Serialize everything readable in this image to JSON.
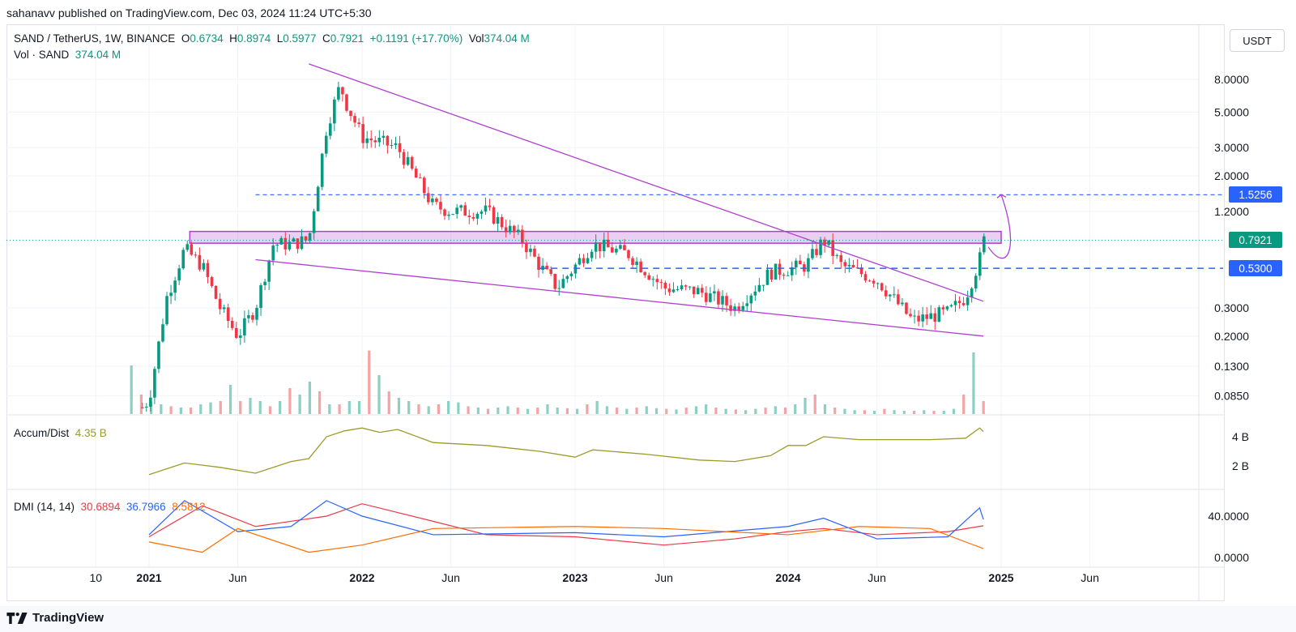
{
  "header": {
    "publisher": "sahanavv published on TradingView.com, Dec 03, 2024 11:24 UTC+5:30"
  },
  "legend": {
    "symbol": "SAND / TetherUS, 1W, BINANCE",
    "o_label": "O",
    "o": "0.6734",
    "h_label": "H",
    "h": "0.8974",
    "l_label": "L",
    "l": "0.5977",
    "c_label": "C",
    "c": "0.7921",
    "change": "+0.1191 (+17.70%)",
    "vol_label": "Vol",
    "vol": "374.04 M",
    "vol_series_label": "Vol · SAND",
    "vol_series_value": "374.04 M"
  },
  "unit_button": "USDT",
  "price_tags": {
    "level_high": "1.5256",
    "last": "0.7921",
    "level_low": "0.5300"
  },
  "accum_dist": {
    "label": "Accum/Dist",
    "value": "4.35 B"
  },
  "dmi": {
    "label": "DMI (14, 14)",
    "plus_di": "30.6894",
    "minus_di": "36.7966",
    "adx": "8.5812"
  },
  "brand": "TradingView",
  "colors": {
    "up": "#089981",
    "down": "#f23645",
    "up_volume": "#8ccfc3",
    "down_volume": "#f5a3a6",
    "wedge": "#b03fcf",
    "level": "#2962ff",
    "adl": "#9b9b2a",
    "dmi_plus": "#f23645",
    "dmi_minus": "#2962ff",
    "dmi_adx": "#ff6d00"
  },
  "chart_data": [
    {
      "type": "candlestick",
      "title": "SAND / TetherUS, 1W, BINANCE",
      "scale": "log",
      "y_ticks": [
        "8.0000",
        "5.0000",
        "3.0000",
        "2.0000",
        "1.2000",
        "0.3000",
        "0.2000",
        "0.1300",
        "0.0850"
      ],
      "x_ticks": [
        "10",
        "2021",
        "Jun",
        "2022",
        "Jun",
        "2023",
        "Jun",
        "2024",
        "Jun",
        "2025",
        "Jun"
      ],
      "last_close": 0.7921,
      "horizontal_levels": [
        1.5256,
        0.53
      ],
      "resistance_zone": [
        0.76,
        0.9
      ],
      "wedge": {
        "upper": [
          {
            "x": "2021-10",
            "y": 10.0
          },
          {
            "x": "2024-12",
            "y": 0.33
          }
        ],
        "lower": [
          {
            "x": "2021-07",
            "y": 0.6
          },
          {
            "x": "2024-12",
            "y": 0.2
          }
        ]
      },
      "weekly_close_path": [
        {
          "x": "2020-12",
          "y": 0.06
        },
        {
          "x": "2021-01",
          "y": 0.08
        },
        {
          "x": "2021-02",
          "y": 0.35
        },
        {
          "x": "2021-03",
          "y": 0.7
        },
        {
          "x": "2021-04",
          "y": 0.55
        },
        {
          "x": "2021-05",
          "y": 0.3
        },
        {
          "x": "2021-06",
          "y": 0.2
        },
        {
          "x": "2021-07",
          "y": 0.3
        },
        {
          "x": "2021-08",
          "y": 0.75
        },
        {
          "x": "2021-09",
          "y": 0.75
        },
        {
          "x": "2021-10",
          "y": 0.8
        },
        {
          "x": "2021-11",
          "y": 4.0
        },
        {
          "x": "2021-11-25",
          "y": 7.5
        },
        {
          "x": "2021-12",
          "y": 6.0
        },
        {
          "x": "2022-01",
          "y": 3.5
        },
        {
          "x": "2022-03",
          "y": 3.0
        },
        {
          "x": "2022-05",
          "y": 1.3
        },
        {
          "x": "2022-06",
          "y": 1.2
        },
        {
          "x": "2022-08",
          "y": 1.2
        },
        {
          "x": "2022-10",
          "y": 0.8
        },
        {
          "x": "2022-11",
          "y": 0.55
        },
        {
          "x": "2022-12",
          "y": 0.4
        },
        {
          "x": "2023-02",
          "y": 0.75
        },
        {
          "x": "2023-04",
          "y": 0.65
        },
        {
          "x": "2023-06",
          "y": 0.4
        },
        {
          "x": "2023-08",
          "y": 0.38
        },
        {
          "x": "2023-10",
          "y": 0.3
        },
        {
          "x": "2023-12",
          "y": 0.5
        },
        {
          "x": "2024-02",
          "y": 0.55
        },
        {
          "x": "2024-03",
          "y": 0.8
        },
        {
          "x": "2024-04",
          "y": 0.55
        },
        {
          "x": "2024-06",
          "y": 0.45
        },
        {
          "x": "2024-08",
          "y": 0.25
        },
        {
          "x": "2024-10",
          "y": 0.28
        },
        {
          "x": "2024-11",
          "y": 0.35
        },
        {
          "x": "2024-11-25",
          "y": 0.6
        },
        {
          "x": "2024-12",
          "y": 0.7921
        }
      ],
      "projection": [
        {
          "x": "2024-12",
          "y": 0.7921
        },
        {
          "x": "2025-01",
          "y": 1.5256
        }
      ],
      "volume": {
        "label": "Vol · SAND",
        "last": "374.04 M",
        "relative_heights": [
          0.75,
          0.3,
          0.18,
          0.15,
          0.12,
          0.1,
          0.1,
          0.15,
          0.18,
          0.2,
          0.45,
          0.2,
          0.25,
          0.2,
          0.12,
          0.2,
          0.4,
          0.3,
          0.5,
          0.35,
          0.15,
          0.15,
          0.2,
          0.2,
          0.98,
          0.6,
          0.35,
          0.25,
          0.2,
          0.15,
          0.12,
          0.15,
          0.2,
          0.18,
          0.12,
          0.1,
          0.08,
          0.1,
          0.12,
          0.1,
          0.08,
          0.1,
          0.15,
          0.1,
          0.09,
          0.08,
          0.15,
          0.2,
          0.12,
          0.1,
          0.08,
          0.1,
          0.12,
          0.09,
          0.08,
          0.07,
          0.1,
          0.12,
          0.15,
          0.1,
          0.08,
          0.07,
          0.06,
          0.08,
          0.1,
          0.12,
          0.1,
          0.15,
          0.25,
          0.3,
          0.15,
          0.1,
          0.08,
          0.06,
          0.06,
          0.05,
          0.08,
          0.06,
          0.05,
          0.05,
          0.06,
          0.05,
          0.05,
          0.08,
          0.3,
          0.95,
          0.2
        ]
      }
    },
    {
      "type": "line",
      "title": "Accum/Dist",
      "y_ticks": [
        "4 B",
        "2 B"
      ],
      "last": "4.35 B",
      "series": [
        {
          "values": [
            {
              "x": "2021-01",
              "y": 1.4
            },
            {
              "x": "2021-03",
              "y": 2.2
            },
            {
              "x": "2021-05",
              "y": 1.9
            },
            {
              "x": "2021-07",
              "y": 1.5
            },
            {
              "x": "2021-09",
              "y": 2.3
            },
            {
              "x": "2021-10",
              "y": 2.5
            },
            {
              "x": "2021-11",
              "y": 4.0
            },
            {
              "x": "2021-12",
              "y": 4.4
            },
            {
              "x": "2022-01",
              "y": 4.6
            },
            {
              "x": "2022-02",
              "y": 4.3
            },
            {
              "x": "2022-03",
              "y": 4.5
            },
            {
              "x": "2022-05",
              "y": 3.6
            },
            {
              "x": "2022-08",
              "y": 3.4
            },
            {
              "x": "2022-11",
              "y": 3.0
            },
            {
              "x": "2023-01",
              "y": 2.6
            },
            {
              "x": "2023-02",
              "y": 3.1
            },
            {
              "x": "2023-05",
              "y": 2.8
            },
            {
              "x": "2023-08",
              "y": 2.4
            },
            {
              "x": "2023-10",
              "y": 2.3
            },
            {
              "x": "2023-12",
              "y": 2.7
            },
            {
              "x": "2024-01",
              "y": 3.4
            },
            {
              "x": "2024-02",
              "y": 3.4
            },
            {
              "x": "2024-03",
              "y": 4.0
            },
            {
              "x": "2024-05",
              "y": 3.8
            },
            {
              "x": "2024-07",
              "y": 3.8
            },
            {
              "x": "2024-09",
              "y": 3.8
            },
            {
              "x": "2024-11",
              "y": 3.9
            },
            {
              "x": "2024-11-25",
              "y": 4.6
            },
            {
              "x": "2024-12",
              "y": 4.35
            }
          ]
        }
      ]
    },
    {
      "type": "line",
      "title": "DMI (14, 14)",
      "y_ticks": [
        "40.0000",
        "0.0000"
      ],
      "series": [
        {
          "name": "30.6894",
          "color": "#f23645",
          "values": [
            {
              "x": "2021-01",
              "y": 20
            },
            {
              "x": "2021-04",
              "y": 50
            },
            {
              "x": "2021-07",
              "y": 30
            },
            {
              "x": "2021-11",
              "y": 40
            },
            {
              "x": "2022-01",
              "y": 52
            },
            {
              "x": "2022-05",
              "y": 35
            },
            {
              "x": "2022-08",
              "y": 22
            },
            {
              "x": "2023-01",
              "y": 20
            },
            {
              "x": "2023-06",
              "y": 12
            },
            {
              "x": "2023-10",
              "y": 18
            },
            {
              "x": "2024-01",
              "y": 25
            },
            {
              "x": "2024-03",
              "y": 28
            },
            {
              "x": "2024-06",
              "y": 22
            },
            {
              "x": "2024-10",
              "y": 25
            },
            {
              "x": "2024-12",
              "y": 30.6894
            }
          ]
        },
        {
          "name": "36.7966",
          "color": "#2962ff",
          "values": [
            {
              "x": "2021-01",
              "y": 22
            },
            {
              "x": "2021-03",
              "y": 55
            },
            {
              "x": "2021-06",
              "y": 25
            },
            {
              "x": "2021-09",
              "y": 30
            },
            {
              "x": "2021-11",
              "y": 55
            },
            {
              "x": "2022-01",
              "y": 40
            },
            {
              "x": "2022-05",
              "y": 22
            },
            {
              "x": "2023-01",
              "y": 24
            },
            {
              "x": "2023-06",
              "y": 20
            },
            {
              "x": "2024-01",
              "y": 30
            },
            {
              "x": "2024-03",
              "y": 38
            },
            {
              "x": "2024-06",
              "y": 18
            },
            {
              "x": "2024-10",
              "y": 20
            },
            {
              "x": "2024-11-25",
              "y": 48
            },
            {
              "x": "2024-12",
              "y": 36.7966
            }
          ]
        },
        {
          "name": "8.5812",
          "color": "#ff6d00",
          "values": [
            {
              "x": "2021-01",
              "y": 15
            },
            {
              "x": "2021-04",
              "y": 5
            },
            {
              "x": "2021-06",
              "y": 28
            },
            {
              "x": "2021-10",
              "y": 5
            },
            {
              "x": "2022-01",
              "y": 12
            },
            {
              "x": "2022-05",
              "y": 28
            },
            {
              "x": "2023-01",
              "y": 30
            },
            {
              "x": "2023-06",
              "y": 28
            },
            {
              "x": "2024-01",
              "y": 22
            },
            {
              "x": "2024-05",
              "y": 30
            },
            {
              "x": "2024-09",
              "y": 28
            },
            {
              "x": "2024-11",
              "y": 15
            },
            {
              "x": "2024-12",
              "y": 8.5812
            }
          ]
        }
      ]
    }
  ]
}
